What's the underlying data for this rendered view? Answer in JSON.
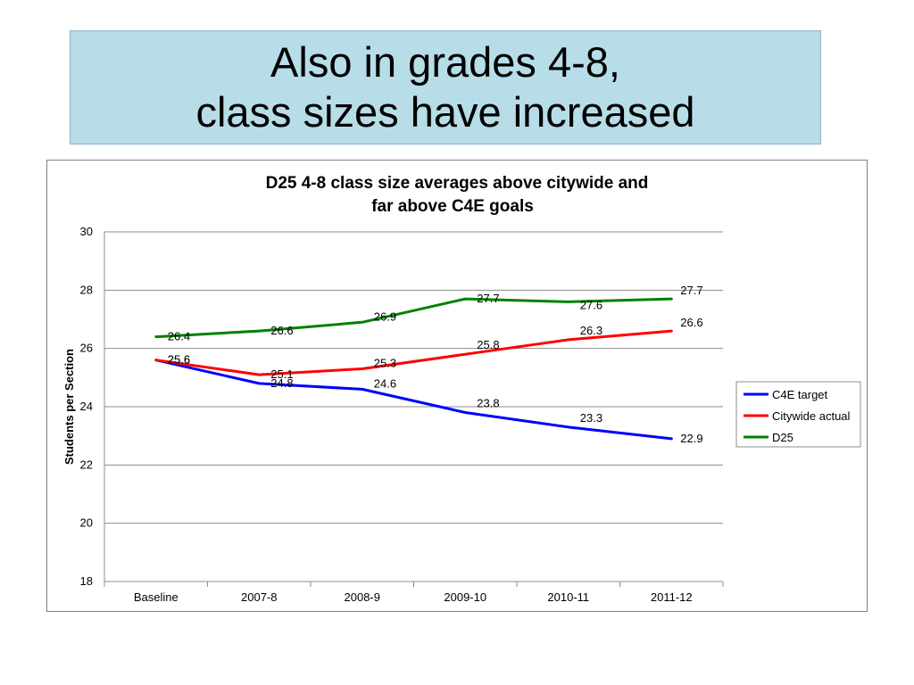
{
  "slide": {
    "title_line1": "Also in grades 4-8,",
    "title_line2": "class sizes have increased"
  },
  "chart_data": {
    "type": "line",
    "title_line1": "D25 4-8 class size averages above citywide and",
    "title_line2": "far above C4E goals",
    "xlabel": "",
    "ylabel": "Students per Section",
    "categories": [
      "Baseline",
      "2007-8",
      "2008-9",
      "2009-10",
      "2010-11",
      "2011-12"
    ],
    "ylim": [
      18,
      30
    ],
    "yticks": [
      "18",
      "20",
      "22",
      "24",
      "26",
      "28",
      "30"
    ],
    "grid": true,
    "legend_position": "right",
    "series": [
      {
        "name": "C4E target",
        "color": "#0000ff",
        "values": [
          25.6,
          24.8,
          24.6,
          23.8,
          23.3,
          22.9
        ],
        "labels": [
          "25.6",
          "24.8",
          "24.6",
          "23.8",
          "23.3",
          "22.9"
        ]
      },
      {
        "name": "Citywide actual",
        "color": "#ff0000",
        "values": [
          25.6,
          25.1,
          25.3,
          25.8,
          26.3,
          26.6
        ],
        "labels": [
          "25.6",
          "25.1",
          "25.3",
          "25.8",
          "26.3",
          "26.6"
        ]
      },
      {
        "name": "D25",
        "color": "#008000",
        "values": [
          26.4,
          26.6,
          26.9,
          27.7,
          27.6,
          27.7
        ],
        "labels": [
          "26.4",
          "26.6",
          "26.9",
          "27.7",
          "27.6",
          "27.7"
        ]
      }
    ]
  }
}
